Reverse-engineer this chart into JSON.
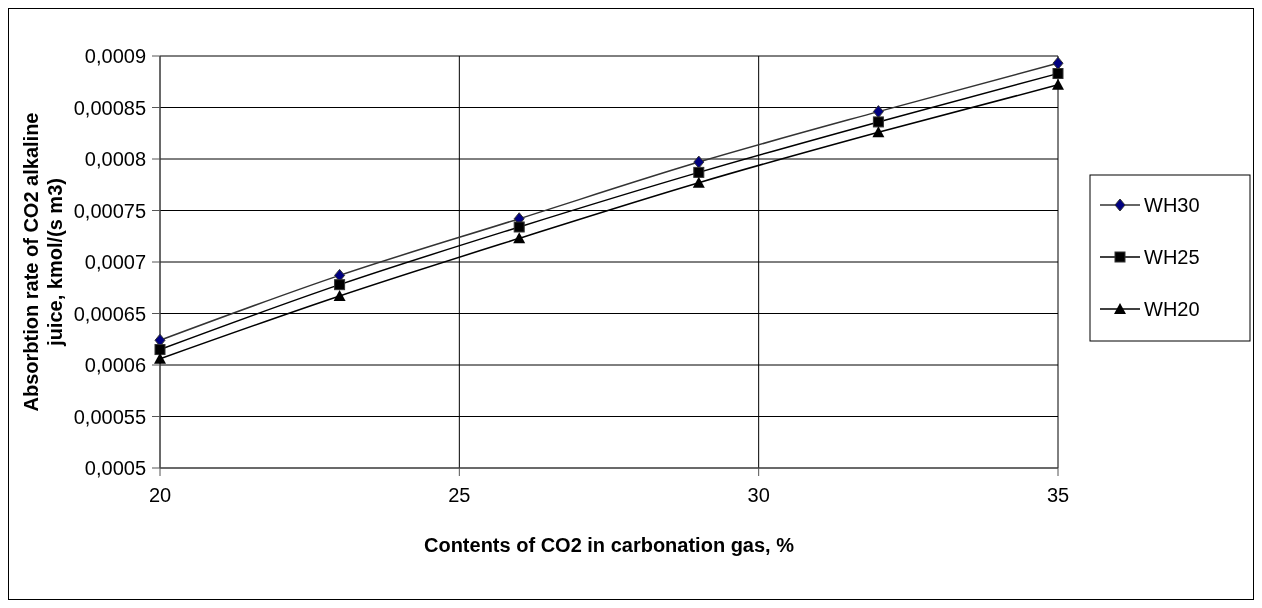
{
  "chart_data": {
    "type": "line",
    "xlabel": "Contents of CO2 in carbonation gas, %",
    "ylabel": "Absorbtion rate of CO2 alkaline juice, kmol/(s m3)",
    "x": [
      20,
      23,
      26,
      29,
      32,
      35
    ],
    "series": [
      {
        "name": "WH30",
        "color": "#000080",
        "marker": "diamond",
        "values": [
          0.000624,
          0.000687,
          0.000742,
          0.000797,
          0.000846,
          0.000893
        ]
      },
      {
        "name": "WH25",
        "color": "#000000",
        "marker": "square",
        "values": [
          0.000615,
          0.000678,
          0.000734,
          0.000787,
          0.000836,
          0.000883
        ]
      },
      {
        "name": "WH20",
        "color": "#000000",
        "marker": "triangle",
        "values": [
          0.000606,
          0.000667,
          0.000723,
          0.000777,
          0.000826,
          0.000872
        ]
      }
    ],
    "xlim": [
      20,
      35
    ],
    "xticks": [
      20,
      25,
      30,
      35
    ],
    "ylim": [
      0.0005,
      0.0009
    ],
    "yticks": [
      {
        "value": 0.0005,
        "label": "0,0005"
      },
      {
        "value": 0.00055,
        "label": "0,00055"
      },
      {
        "value": 0.0006,
        "label": "0,0006"
      },
      {
        "value": 0.00065,
        "label": "0,00065"
      },
      {
        "value": 0.0007,
        "label": "0,0007"
      },
      {
        "value": 0.00075,
        "label": "0,00075"
      },
      {
        "value": 0.0008,
        "label": "0,0008"
      },
      {
        "value": 0.00085,
        "label": "0,00085"
      },
      {
        "value": 0.0009,
        "label": "0,0009"
      }
    ],
    "grid": true,
    "legend": "right",
    "line_style": "solid"
  }
}
